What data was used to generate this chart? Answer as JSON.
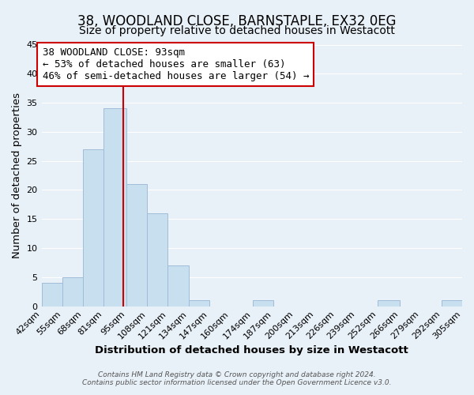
{
  "title": "38, WOODLAND CLOSE, BARNSTAPLE, EX32 0EG",
  "subtitle": "Size of property relative to detached houses in Westacott",
  "xlabel": "Distribution of detached houses by size in Westacott",
  "ylabel": "Number of detached properties",
  "footer_line1": "Contains HM Land Registry data © Crown copyright and database right 2024.",
  "footer_line2": "Contains public sector information licensed under the Open Government Licence v3.0.",
  "bin_edges": [
    42,
    55,
    68,
    81,
    95,
    108,
    121,
    134,
    147,
    160,
    174,
    187,
    200,
    213,
    226,
    239,
    252,
    266,
    279,
    292,
    305
  ],
  "bin_labels": [
    "42sqm",
    "55sqm",
    "68sqm",
    "81sqm",
    "95sqm",
    "108sqm",
    "121sqm",
    "134sqm",
    "147sqm",
    "160sqm",
    "174sqm",
    "187sqm",
    "200sqm",
    "213sqm",
    "226sqm",
    "239sqm",
    "252sqm",
    "266sqm",
    "279sqm",
    "292sqm",
    "305sqm"
  ],
  "counts": [
    4,
    5,
    27,
    34,
    21,
    16,
    7,
    1,
    0,
    0,
    1,
    0,
    0,
    0,
    0,
    0,
    1,
    0,
    0,
    1
  ],
  "bar_color": "#c8dff0",
  "bar_edge_color": "#a0bcd8",
  "property_value": 93,
  "vline_color": "#cc0000",
  "ylim": [
    0,
    45
  ],
  "yticks": [
    0,
    5,
    10,
    15,
    20,
    25,
    30,
    35,
    40,
    45
  ],
  "annotation_title": "38 WOODLAND CLOSE: 93sqm",
  "annotation_line2": "← 53% of detached houses are smaller (63)",
  "annotation_line3": "46% of semi-detached houses are larger (54) →",
  "annotation_box_color": "#ffffff",
  "annotation_box_edge": "#cc0000",
  "bg_color": "#e8f0f8",
  "grid_color": "#ffffff",
  "title_fontsize": 12,
  "subtitle_fontsize": 10,
  "annotation_fontsize": 9,
  "axis_label_fontsize": 9.5,
  "tick_fontsize": 8,
  "footer_fontsize": 6.5
}
